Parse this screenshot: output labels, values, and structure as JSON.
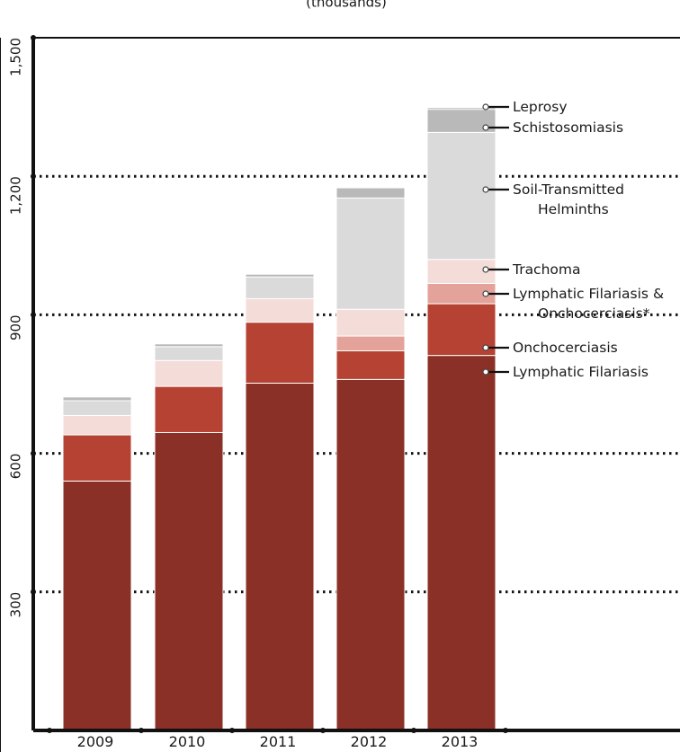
{
  "chart_data": {
    "type": "bar",
    "stacked": true,
    "unit_label": "(thousands)",
    "categories": [
      "2009",
      "2010",
      "2011",
      "2012",
      "2013"
    ],
    "ylim": [
      0,
      1500
    ],
    "yticks": [
      300,
      600,
      900,
      1200,
      1500
    ],
    "ytick_labels": [
      "300",
      "600",
      "900",
      "1,200",
      "1,500"
    ],
    "grid": "dotted horizontal",
    "series": [
      {
        "name": "Lymphatic Filariasis",
        "color": "#8b3026",
        "values": [
          540,
          645,
          752,
          760,
          812
        ]
      },
      {
        "name": "Onchocerciasis",
        "color": "#b54233",
        "values": [
          100,
          100,
          132,
          62,
          112
        ]
      },
      {
        "name": "Lymphatic Filariasis & Onchocerciasis*",
        "color": "#e3a39a",
        "values": [
          0,
          0,
          0,
          32,
          44
        ]
      },
      {
        "name": "Trachoma",
        "color": "#f4dcd8",
        "values": [
          42,
          56,
          51,
          58,
          52
        ]
      },
      {
        "name": "Soil-Transmitted Helminths",
        "color": "#dadada",
        "values": [
          32,
          30,
          47,
          241,
          275
        ]
      },
      {
        "name": "Schistosomiasis",
        "color": "#b9b9b9",
        "values": [
          8,
          6,
          6,
          22,
          50
        ]
      },
      {
        "name": "Leprosy",
        "color": "#7a7a7a",
        "values": [
          0,
          0,
          0,
          0,
          3
        ]
      }
    ],
    "legend": [
      {
        "lines": [
          "Leprosy"
        ],
        "series_index": 6
      },
      {
        "lines": [
          "Schistosomiasis"
        ],
        "series_index": 5
      },
      {
        "lines": [
          "Soil-Transmitted",
          "Helminths"
        ],
        "series_index": 4
      },
      {
        "lines": [
          "Trachoma"
        ],
        "series_index": 3
      },
      {
        "lines": [
          "Lymphatic Filariasis &",
          "Onchocerciasis*"
        ],
        "series_index": 2
      },
      {
        "lines": [
          "Onchocerciasis"
        ],
        "series_index": 1
      },
      {
        "lines": [
          "Lymphatic Filariasis"
        ],
        "series_index": 0
      }
    ],
    "legend_position": "right"
  }
}
